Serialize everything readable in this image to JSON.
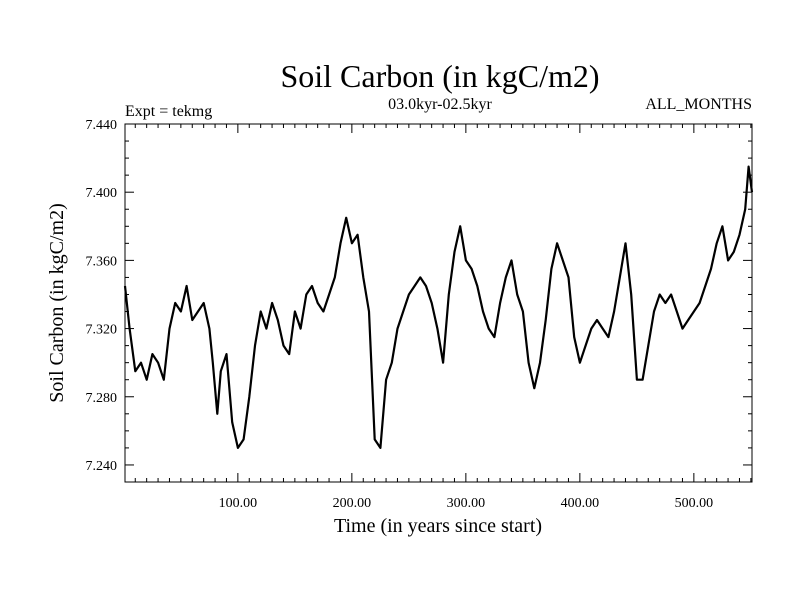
{
  "chart_data": {
    "type": "line",
    "title": "Soil Carbon (in kgC/m2)",
    "subtitle": "03.0kyr-02.5kyr",
    "left_note": "Expt = tekmg",
    "right_note": "ALL_MONTHS",
    "xlabel": "Time (in years since start)",
    "ylabel": "Soil Carbon (in kgC/m2)",
    "xlim": [
      1,
      551
    ],
    "ylim": [
      7.23,
      7.44
    ],
    "x_major_ticks": [
      100,
      200,
      300,
      400,
      500
    ],
    "x_tick_labels": [
      "100.00",
      "200.00",
      "300.00",
      "400.00",
      "500.00"
    ],
    "y_major_ticks": [
      7.24,
      7.28,
      7.32,
      7.36,
      7.4,
      7.44
    ],
    "y_tick_labels": [
      "7.240",
      "7.280",
      "7.320",
      "7.360",
      "7.400",
      "7.440"
    ],
    "x_minor_step": 10,
    "y_minor_step": 0.01,
    "grid": false,
    "series": [
      {
        "name": "Soil Carbon",
        "color": "#000000",
        "x": [
          1,
          5,
          10,
          15,
          20,
          25,
          30,
          35,
          40,
          45,
          50,
          55,
          60,
          65,
          70,
          75,
          78,
          82,
          85,
          90,
          95,
          100,
          105,
          110,
          115,
          120,
          125,
          130,
          135,
          140,
          145,
          150,
          155,
          160,
          165,
          170,
          175,
          180,
          185,
          190,
          195,
          200,
          205,
          210,
          215,
          220,
          225,
          230,
          235,
          240,
          245,
          250,
          255,
          260,
          265,
          270,
          275,
          280,
          285,
          290,
          295,
          300,
          305,
          310,
          315,
          320,
          325,
          330,
          335,
          340,
          345,
          350,
          355,
          360,
          365,
          370,
          375,
          380,
          385,
          390,
          395,
          400,
          405,
          410,
          415,
          420,
          425,
          430,
          435,
          440,
          445,
          450,
          455,
          460,
          465,
          470,
          475,
          480,
          485,
          490,
          495,
          500,
          505,
          510,
          515,
          520,
          525,
          530,
          535,
          540,
          545,
          548,
          551
        ],
        "values": [
          7.345,
          7.32,
          7.295,
          7.3,
          7.29,
          7.305,
          7.3,
          7.29,
          7.32,
          7.335,
          7.33,
          7.345,
          7.325,
          7.33,
          7.335,
          7.32,
          7.3,
          7.27,
          7.295,
          7.305,
          7.265,
          7.25,
          7.255,
          7.28,
          7.31,
          7.33,
          7.32,
          7.335,
          7.325,
          7.31,
          7.305,
          7.33,
          7.32,
          7.34,
          7.345,
          7.335,
          7.33,
          7.34,
          7.35,
          7.37,
          7.385,
          7.37,
          7.375,
          7.35,
          7.33,
          7.255,
          7.25,
          7.29,
          7.3,
          7.32,
          7.33,
          7.34,
          7.345,
          7.35,
          7.345,
          7.335,
          7.32,
          7.3,
          7.34,
          7.365,
          7.38,
          7.36,
          7.355,
          7.345,
          7.33,
          7.32,
          7.315,
          7.335,
          7.35,
          7.36,
          7.34,
          7.33,
          7.3,
          7.285,
          7.3,
          7.325,
          7.355,
          7.37,
          7.36,
          7.35,
          7.315,
          7.3,
          7.31,
          7.32,
          7.325,
          7.32,
          7.315,
          7.33,
          7.35,
          7.37,
          7.34,
          7.29,
          7.29,
          7.31,
          7.33,
          7.34,
          7.335,
          7.34,
          7.33,
          7.32,
          7.325,
          7.33,
          7.335,
          7.345,
          7.355,
          7.37,
          7.38,
          7.36,
          7.365,
          7.375,
          7.39,
          7.415,
          7.4
        ]
      }
    ]
  }
}
